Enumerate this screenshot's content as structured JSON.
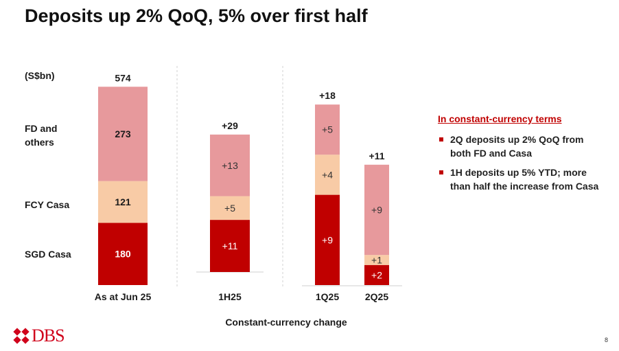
{
  "title": "Deposits up 2% QoQ, 5% over first half",
  "chart_data": {
    "type": "bar",
    "unit_label": "(S$bn)",
    "row_labels": {
      "fd": "FD and\nothers",
      "fcy": "FCY Casa",
      "sgd": "SGD Casa"
    },
    "xlabel": "Constant-currency change",
    "categories": [
      "As at Jun 25",
      "1H25",
      "1Q25",
      "2Q25"
    ],
    "totals": [
      "574",
      "+29",
      "+18",
      "+11"
    ],
    "series": [
      {
        "key": "sgd",
        "color": "#c00000",
        "values": [
          180,
          11,
          9,
          2
        ],
        "labels": [
          "180",
          "+11",
          "+9",
          "+2"
        ]
      },
      {
        "key": "fcy",
        "color": "#f8cba6",
        "values": [
          121,
          5,
          4,
          1
        ],
        "labels": [
          "121",
          "+5",
          "+4",
          "+1"
        ]
      },
      {
        "key": "fd",
        "color": "#e7999c",
        "values": [
          273,
          13,
          5,
          9
        ],
        "labels": [
          "273",
          "+13",
          "+5",
          "+9"
        ]
      }
    ]
  },
  "commentary": {
    "heading": "In constant-currency terms",
    "bullets": [
      "2Q deposits up 2% QoQ from both FD and Casa",
      "1H deposits up 5% YTD; more than half the increase from Casa"
    ]
  },
  "footer": {
    "logo": "DBS",
    "page_number": "8"
  }
}
